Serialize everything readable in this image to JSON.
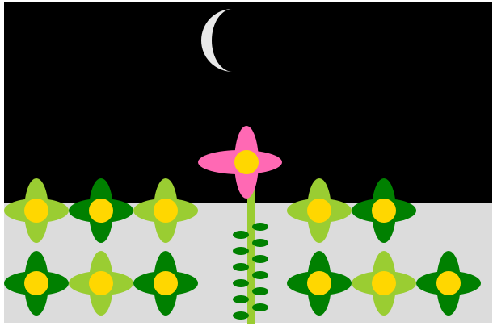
{
  "colors": {
    "frame": "#ffffff",
    "night_sky": "#000000",
    "ground": "#dcdcdc",
    "moon": "#e8e8e8",
    "stem": "#9acd32",
    "leaf": "#008000",
    "flower_center": "#ffd700",
    "light_petals": "#9acd32",
    "dark_petals": "#008000",
    "tall_flower_petals": "#ff69b4"
  },
  "scene": {
    "moon": {
      "shape": "crescent",
      "icon": "moon-icon"
    },
    "tall_flower": {
      "petal_color": "pink",
      "leaf_pairs": 6
    },
    "flowers": [
      {
        "row": 1,
        "col": 1,
        "petals": "light"
      },
      {
        "row": 1,
        "col": 2,
        "petals": "dark"
      },
      {
        "row": 1,
        "col": 3,
        "petals": "light"
      },
      {
        "row": 1,
        "col": 5,
        "petals": "light"
      },
      {
        "row": 1,
        "col": 6,
        "petals": "dark"
      },
      {
        "row": 2,
        "col": 1,
        "petals": "dark"
      },
      {
        "row": 2,
        "col": 2,
        "petals": "light"
      },
      {
        "row": 2,
        "col": 3,
        "petals": "dark"
      },
      {
        "row": 2,
        "col": 5,
        "petals": "dark"
      },
      {
        "row": 2,
        "col": 6,
        "petals": "light"
      },
      {
        "row": 2,
        "col": 7,
        "petals": "dark"
      }
    ]
  }
}
